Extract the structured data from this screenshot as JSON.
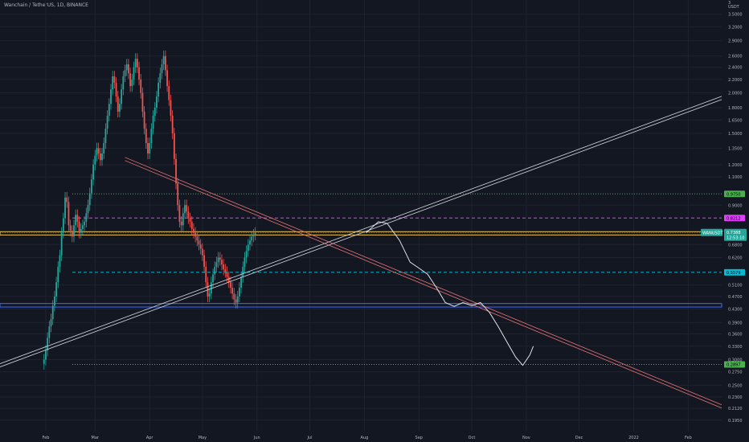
{
  "title": "Wanchain / TetherUS, 1D, BINANCE",
  "chart_data": {
    "type": "candlestick",
    "title": "Wanchain / TetherUS, 1D, BINANCE",
    "y_scale": "log",
    "y_currency_label": "USDT",
    "y_currency_top": "3",
    "ylim": [
      0.185,
      3.7
    ],
    "y_ticks": [
      "3.5000",
      "3.2000",
      "2.9000",
      "2.6000",
      "2.4000",
      "2.2000",
      "2.0000",
      "1.8000",
      "1.6500",
      "1.5000",
      "1.3500",
      "1.2000",
      "1.1000",
      "0.9000",
      "0.6800",
      "0.6200",
      "0.5100",
      "0.4700",
      "0.4300",
      "0.3900",
      "0.3600",
      "0.3300",
      "0.3000",
      "0.2750",
      "0.2500",
      "0.2300",
      "0.2120",
      "0.1950"
    ],
    "x_ticks": [
      {
        "label": "Feb",
        "t": 1
      },
      {
        "label": "Mar",
        "t": 29
      },
      {
        "label": "Apr",
        "t": 60
      },
      {
        "label": "May",
        "t": 90
      },
      {
        "label": "Jun",
        "t": 121
      },
      {
        "label": "Jul",
        "t": 151
      },
      {
        "label": "Aug",
        "t": 182
      },
      {
        "label": "Sep",
        "t": 213
      },
      {
        "label": "Oct",
        "t": 243
      },
      {
        "label": "Nov",
        "t": 274
      },
      {
        "label": "Dec",
        "t": 304
      },
      {
        "label": "2022",
        "t": 335
      },
      {
        "label": "Feb",
        "t": 366
      }
    ],
    "x_range": [
      -25,
      385
    ],
    "up_color": "#26a69a",
    "down_color": "#ef5350",
    "closes": [
      0.3,
      0.32,
      0.35,
      0.38,
      0.4,
      0.44,
      0.47,
      0.52,
      0.58,
      0.63,
      0.74,
      0.82,
      0.95,
      0.92,
      0.78,
      0.75,
      0.72,
      0.78,
      0.84,
      0.8,
      0.74,
      0.76,
      0.78,
      0.8,
      0.85,
      0.9,
      0.98,
      1.08,
      1.2,
      1.28,
      1.35,
      1.3,
      1.24,
      1.3,
      1.4,
      1.55,
      1.7,
      1.85,
      2.05,
      2.25,
      2.15,
      1.95,
      1.75,
      1.85,
      2.05,
      2.25,
      2.35,
      2.45,
      2.3,
      2.1,
      2.2,
      2.4,
      2.55,
      2.4,
      2.2,
      2.0,
      1.75,
      1.55,
      1.4,
      1.3,
      1.4,
      1.55,
      1.7,
      1.8,
      1.95,
      2.15,
      2.3,
      2.45,
      2.6,
      2.35,
      2.1,
      1.9,
      1.7,
      1.5,
      1.25,
      1.05,
      0.9,
      0.8,
      0.78,
      0.85,
      0.9,
      0.86,
      0.82,
      0.8,
      0.76,
      0.74,
      0.72,
      0.7,
      0.68,
      0.66,
      0.63,
      0.58,
      0.52,
      0.47,
      0.48,
      0.52,
      0.55,
      0.58,
      0.6,
      0.62,
      0.61,
      0.59,
      0.57,
      0.56,
      0.54,
      0.52,
      0.5,
      0.48,
      0.46,
      0.45,
      0.47,
      0.5,
      0.54,
      0.58,
      0.62,
      0.65,
      0.68,
      0.7,
      0.72,
      0.73,
      0.74
    ],
    "last_price": {
      "value": 0.7388,
      "symbol": "WANUSDT",
      "countdown": "12:53:10"
    },
    "levels": [
      {
        "value": 0.975,
        "label": "0.9750",
        "color": "#4caf50",
        "style": "dotted"
      },
      {
        "value": 0.8212,
        "label": "0.8212",
        "color": "#e040fb",
        "style": "dashed"
      },
      {
        "value": 0.5579,
        "label": "0.5579",
        "color": "#00bcd4",
        "style": "dashed"
      },
      {
        "value": 0.2897,
        "label": "0.2897",
        "color": "#4caf50",
        "style": "dotted"
      }
    ],
    "zones": [
      {
        "from": 0.728,
        "to": 0.745,
        "color": "#f5c542"
      },
      {
        "from": 0.436,
        "to": 0.447,
        "color": "#3d6bff"
      }
    ],
    "trendlines": [
      {
        "name": "ascending",
        "color": "#d1d4dc",
        "from": [
          -25,
          0.288
        ],
        "to": [
          385,
          1.93
        ]
      },
      {
        "name": "descending",
        "color": "#e57373",
        "from": [
          46,
          1.25
        ],
        "to": [
          385,
          0.215
        ]
      }
    ],
    "projection": [
      [
        183,
        0.74
      ],
      [
        190,
        0.8
      ],
      [
        195,
        0.79
      ],
      [
        202,
        0.7
      ],
      [
        208,
        0.6
      ],
      [
        213,
        0.575
      ],
      [
        218,
        0.55
      ],
      [
        223,
        0.5
      ],
      [
        228,
        0.45
      ],
      [
        233,
        0.438
      ],
      [
        238,
        0.45
      ],
      [
        243,
        0.44
      ],
      [
        248,
        0.45
      ],
      [
        253,
        0.42
      ],
      [
        258,
        0.38
      ],
      [
        263,
        0.34
      ],
      [
        268,
        0.305
      ],
      [
        272,
        0.288
      ],
      [
        276,
        0.31
      ],
      [
        278,
        0.33
      ]
    ]
  }
}
